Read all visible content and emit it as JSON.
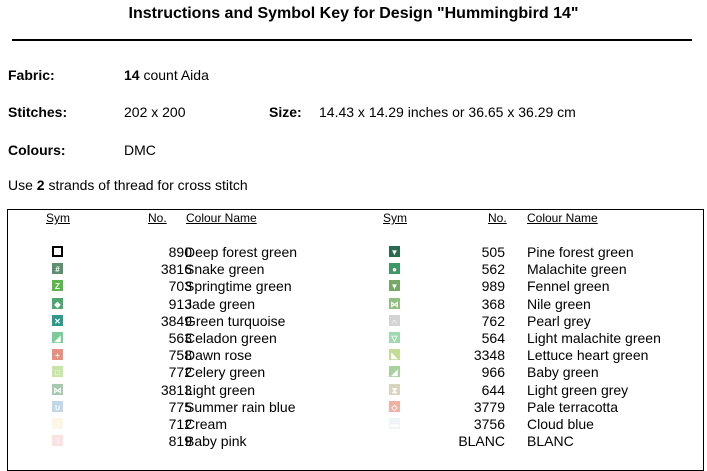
{
  "title": "Instructions and Symbol Key for Design \"Hummingbird 14\"",
  "fabric": {
    "label": "Fabric:",
    "count": "14",
    "rest": " count Aida"
  },
  "stitches": {
    "label": "Stitches:",
    "value": "202 x 200"
  },
  "size": {
    "label": "Size:",
    "value": "14.43 x 14.29 inches or 36.65 x 36.29 cm"
  },
  "colours": {
    "label": "Colours:",
    "value": "DMC"
  },
  "instruction": {
    "pre": "Use ",
    "strands": "2",
    "post": " strands of thread for cross stitch"
  },
  "headers": {
    "sym": "Sym",
    "no": "No.",
    "name": "Colour Name"
  },
  "left_col": [
    {
      "no": "890",
      "name": "Deep forest green",
      "icon": "open-square-icon",
      "bg": "#ffffff",
      "border": "#000000",
      "glyph": ""
    },
    {
      "no": "3816",
      "name": "Snake green",
      "icon": "hash-icon",
      "bg": "#5c8f6f",
      "border": "#5c8f6f",
      "glyph": "#"
    },
    {
      "no": "703",
      "name": "Springtime green",
      "icon": "z-icon",
      "bg": "#5ab848",
      "border": "#5ab848",
      "glyph": "Z"
    },
    {
      "no": "913",
      "name": "Jade green",
      "icon": "diamond-icon",
      "bg": "#4ca86e",
      "border": "#4ca86e",
      "glyph": "◆"
    },
    {
      "no": "3849",
      "name": "Green turquoise",
      "icon": "x-icon",
      "bg": "#2e9a8c",
      "border": "#2e9a8c",
      "glyph": "✕"
    },
    {
      "no": "563",
      "name": "Celadon green",
      "icon": "triangle-icon",
      "bg": "#7ccc98",
      "border": "#7ccc98",
      "glyph": "◢"
    },
    {
      "no": "758",
      "name": "Dawn rose",
      "icon": "plus-icon",
      "bg": "#e89080",
      "border": "#e89080",
      "glyph": "+"
    },
    {
      "no": "772",
      "name": "Celery green",
      "icon": "small-square-icon",
      "bg": "#c8e6a8",
      "border": "#c8e6a8",
      "glyph": "□"
    },
    {
      "no": "3813",
      "name": "Light green",
      "icon": "bowtie-icon",
      "bg": "#a8c8b0",
      "border": "#a8c8b0",
      "glyph": "⋈"
    },
    {
      "no": "775",
      "name": "Summer rain blue",
      "icon": "cup-icon",
      "bg": "#c0d8e8",
      "border": "#c0d8e8",
      "glyph": "∪"
    },
    {
      "no": "712",
      "name": "Cream",
      "icon": "corner-icon",
      "bg": "#fdf6e4",
      "border": "#fdf6e4",
      "glyph": "˩"
    },
    {
      "no": "819",
      "name": "Baby pink",
      "icon": "corner-flipped-icon",
      "bg": "#fbe2e2",
      "border": "#fbe2e2",
      "glyph": "˥"
    }
  ],
  "right_col": [
    {
      "no": "505",
      "name": "Pine forest green",
      "icon": "down-triangle-icon",
      "bg": "#2e6a50",
      "border": "#2e6a50",
      "glyph": "▼"
    },
    {
      "no": "562",
      "name": "Malachite green",
      "icon": "circle-icon",
      "bg": "#3e9868",
      "border": "#3e9868",
      "glyph": "●"
    },
    {
      "no": "989",
      "name": "Fennel green",
      "icon": "down-triangle-icon",
      "bg": "#78a868",
      "border": "#78a868",
      "glyph": "▼"
    },
    {
      "no": "368",
      "name": "Nile green",
      "icon": "bowtie-icon",
      "bg": "#90c080",
      "border": "#90c080",
      "glyph": "⋈"
    },
    {
      "no": "762",
      "name": "Pearl grey",
      "icon": "arch-icon",
      "bg": "#d4d4d4",
      "border": "#d4d4d4",
      "glyph": "∩"
    },
    {
      "no": "564",
      "name": "Light malachite green",
      "icon": "open-triangle-icon",
      "bg": "#a0d8b0",
      "border": "#a0d8b0",
      "glyph": "▽"
    },
    {
      "no": "3348",
      "name": "Lettuce heart green",
      "icon": "triangle-icon",
      "bg": "#c4dc98",
      "border": "#c4dc98",
      "glyph": "◣"
    },
    {
      "no": "966",
      "name": "Baby green",
      "icon": "triangle-icon",
      "bg": "#a8d0a0",
      "border": "#a8d0a0",
      "glyph": "◢"
    },
    {
      "no": "644",
      "name": "Light green grey",
      "icon": "hourglass-icon",
      "bg": "#d8d4c0",
      "border": "#d8d4c0",
      "glyph": "⧗"
    },
    {
      "no": "3779",
      "name": "Pale terracotta",
      "icon": "diamond-outline-icon",
      "bg": "#f0b0a4",
      "border": "#f0b0a4",
      "glyph": "◇"
    },
    {
      "no": "3756",
      "name": "Cloud blue",
      "icon": "dash-icon",
      "bg": "#eef4f8",
      "border": "#eef4f8",
      "glyph": "▬"
    },
    {
      "no": "BLANC",
      "name": "BLANC",
      "icon": "blank-icon",
      "bg": "#ffffff",
      "border": "#ffffff",
      "glyph": ""
    }
  ]
}
